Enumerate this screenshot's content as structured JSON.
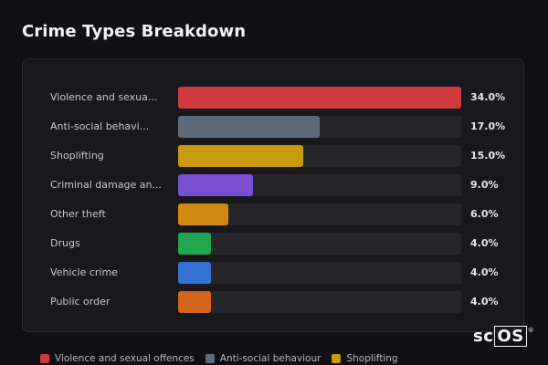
{
  "title": "Crime Types Breakdown",
  "logo": {
    "prefix": "sc",
    "boxed": "OS",
    "mark": "®"
  },
  "chart_data": {
    "type": "bar",
    "orientation": "horizontal",
    "title": "Crime Types Breakdown",
    "xlim": [
      0,
      34
    ],
    "categories": [
      "Violence and sexua...",
      "Anti-social behavi...",
      "Shoplifting",
      "Criminal damage an...",
      "Other theft",
      "Drugs",
      "Vehicle crime",
      "Public order"
    ],
    "values": [
      34.0,
      17.0,
      15.0,
      9.0,
      6.0,
      4.0,
      4.0,
      4.0
    ],
    "value_labels": [
      "34.0%",
      "17.0%",
      "15.0%",
      "9.0%",
      "6.0%",
      "4.0%",
      "4.0%",
      "4.0%"
    ],
    "colors": [
      "#d0393d",
      "#5d6a7a",
      "#c9990f",
      "#7a4fd4",
      "#d08a14",
      "#22a650",
      "#3572d6",
      "#d2651a"
    ],
    "legend": [
      {
        "label": "Violence and sexual offences",
        "color": "#d0393d"
      },
      {
        "label": "Anti-social behaviour",
        "color": "#5d6a7a"
      },
      {
        "label": "Shoplifting",
        "color": "#c9990f"
      }
    ],
    "legend_position": "bottom-left",
    "grid": false
  }
}
